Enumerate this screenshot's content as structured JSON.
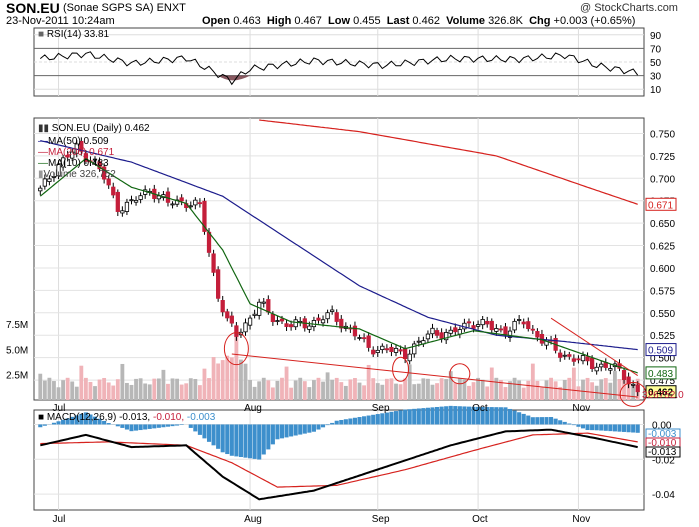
{
  "header": {
    "symbol": "SON.EU",
    "company": "(Sonae SGPS SA)",
    "exchange": "ENXT",
    "date": "23-Nov-2011 10:24am",
    "open_label": "Open",
    "open": "0.463",
    "high_label": "High",
    "high": "0.467",
    "low_label": "Low",
    "low": "0.455",
    "last_label": "Last",
    "last": "0.462",
    "volume_label": "Volume",
    "volume": "326.8K",
    "chg_label": "Chg",
    "chg": "+0.003 (+0.65%)",
    "copyright": "@ StockCharts.com"
  },
  "rsi": {
    "label": "RSI(14) 33.81",
    "ticks": [
      "90",
      "70",
      "50",
      "30",
      "10"
    ],
    "last": "33.81"
  },
  "price_legend": {
    "title": "SON.EU (Daily) 0.462",
    "ma50": "MA(50) 0.509",
    "ma200": "MA(200) 0.671",
    "ma10": "MA(10) 0.483",
    "volume": "Volume 326,752"
  },
  "price_axis": {
    "ticks": [
      "0.750",
      "0.725",
      "0.700",
      "0.675",
      "0.650",
      "0.625",
      "0.600",
      "0.575",
      "0.550",
      "0.525",
      "0.500",
      "0.475"
    ],
    "tags": {
      "ma200": "0.671",
      "ma50": "0.509",
      "ma10": "0.483",
      "last": "0.462",
      "vol": "326752.0"
    }
  },
  "volume_axis": {
    "ticks": [
      "7.5M",
      "5.0M",
      "2.5M"
    ]
  },
  "macd": {
    "label_base": "MACD(12,26,9)",
    "v1": "-0.013,",
    "v2": "-0.010,",
    "v3": "-0.003",
    "ticks": [
      "0.00",
      "-0.02",
      "-0.04"
    ],
    "tags": [
      "-0.003",
      "-0.010",
      "-0.013"
    ]
  },
  "months": [
    "Jul",
    "Aug",
    "Sep",
    "Oct",
    "Nov"
  ],
  "colors": {
    "up": "#ffffff",
    "down": "#c41e3a",
    "vol_up": "#b7b7b7",
    "vol_down": "#f0b3b8",
    "ma50": "#1c1c8c",
    "ma200": "#d6221e",
    "ma10": "#116611",
    "rsi_fill": "#6b2f3a",
    "hist": "#3d8fcc"
  },
  "chart_data": {
    "type": "candlestick",
    "x_months": [
      "Jul",
      "Aug",
      "Sep",
      "Oct",
      "Nov"
    ],
    "price_ylim": [
      0.455,
      0.765
    ],
    "close_waypoints": [
      {
        "d": 0,
        "c": 0.686
      },
      {
        "d": 4,
        "c": 0.716
      },
      {
        "d": 8,
        "c": 0.733
      },
      {
        "d": 12,
        "c": 0.718
      },
      {
        "d": 14,
        "c": 0.7
      },
      {
        "d": 17,
        "c": 0.668
      },
      {
        "d": 20,
        "c": 0.672
      },
      {
        "d": 24,
        "c": 0.688
      },
      {
        "d": 28,
        "c": 0.672
      },
      {
        "d": 31,
        "c": 0.675
      },
      {
        "d": 35,
        "c": 0.668
      },
      {
        "d": 37,
        "c": 0.618
      },
      {
        "d": 39,
        "c": 0.57
      },
      {
        "d": 41,
        "c": 0.54
      },
      {
        "d": 43,
        "c": 0.525
      },
      {
        "d": 45,
        "c": 0.538
      },
      {
        "d": 48,
        "c": 0.56
      },
      {
        "d": 51,
        "c": 0.545
      },
      {
        "d": 55,
        "c": 0.535
      },
      {
        "d": 60,
        "c": 0.54
      },
      {
        "d": 64,
        "c": 0.548
      },
      {
        "d": 68,
        "c": 0.53
      },
      {
        "d": 72,
        "c": 0.512
      },
      {
        "d": 76,
        "c": 0.508
      },
      {
        "d": 80,
        "c": 0.505
      },
      {
        "d": 83,
        "c": 0.515
      },
      {
        "d": 86,
        "c": 0.53
      },
      {
        "d": 90,
        "c": 0.525
      },
      {
        "d": 94,
        "c": 0.54
      },
      {
        "d": 98,
        "c": 0.535
      },
      {
        "d": 102,
        "c": 0.53
      },
      {
        "d": 106,
        "c": 0.54
      },
      {
        "d": 110,
        "c": 0.52
      },
      {
        "d": 114,
        "c": 0.505
      },
      {
        "d": 118,
        "c": 0.497
      },
      {
        "d": 122,
        "c": 0.492
      },
      {
        "d": 126,
        "c": 0.488
      },
      {
        "d": 129,
        "c": 0.476
      },
      {
        "d": 131,
        "c": 0.462
      }
    ],
    "ma50": [
      {
        "d": 0,
        "v": 0.742
      },
      {
        "d": 20,
        "v": 0.718
      },
      {
        "d": 40,
        "v": 0.68
      },
      {
        "d": 55,
        "v": 0.63
      },
      {
        "d": 70,
        "v": 0.58
      },
      {
        "d": 85,
        "v": 0.545
      },
      {
        "d": 100,
        "v": 0.525
      },
      {
        "d": 115,
        "v": 0.518
      },
      {
        "d": 131,
        "v": 0.509
      }
    ],
    "ma200": [
      {
        "d": 48,
        "v": 0.765
      },
      {
        "d": 70,
        "v": 0.752
      },
      {
        "d": 100,
        "v": 0.725
      },
      {
        "d": 120,
        "v": 0.69
      },
      {
        "d": 131,
        "v": 0.671
      }
    ],
    "ma10": [
      {
        "d": 0,
        "v": 0.68
      },
      {
        "d": 10,
        "v": 0.722
      },
      {
        "d": 20,
        "v": 0.69
      },
      {
        "d": 32,
        "v": 0.672
      },
      {
        "d": 40,
        "v": 0.62
      },
      {
        "d": 46,
        "v": 0.56
      },
      {
        "d": 55,
        "v": 0.54
      },
      {
        "d": 70,
        "v": 0.532
      },
      {
        "d": 80,
        "v": 0.51
      },
      {
        "d": 95,
        "v": 0.53
      },
      {
        "d": 110,
        "v": 0.52
      },
      {
        "d": 125,
        "v": 0.493
      },
      {
        "d": 131,
        "v": 0.483
      }
    ],
    "rsi": [
      {
        "d": 0,
        "v": 55
      },
      {
        "d": 10,
        "v": 62
      },
      {
        "d": 20,
        "v": 48
      },
      {
        "d": 32,
        "v": 56
      },
      {
        "d": 42,
        "v": 22
      },
      {
        "d": 46,
        "v": 40
      },
      {
        "d": 60,
        "v": 52
      },
      {
        "d": 75,
        "v": 45
      },
      {
        "d": 90,
        "v": 55
      },
      {
        "d": 105,
        "v": 54
      },
      {
        "d": 115,
        "v": 60
      },
      {
        "d": 122,
        "v": 45
      },
      {
        "d": 131,
        "v": 33.81
      }
    ],
    "macd_line": [
      {
        "d": 0,
        "v": -0.012
      },
      {
        "d": 10,
        "v": -0.006
      },
      {
        "d": 20,
        "v": -0.013
      },
      {
        "d": 32,
        "v": -0.012
      },
      {
        "d": 40,
        "v": -0.03
      },
      {
        "d": 48,
        "v": -0.043
      },
      {
        "d": 60,
        "v": -0.038
      },
      {
        "d": 75,
        "v": -0.025
      },
      {
        "d": 90,
        "v": -0.012
      },
      {
        "d": 102,
        "v": -0.004
      },
      {
        "d": 112,
        "v": -0.003
      },
      {
        "d": 122,
        "v": -0.008
      },
      {
        "d": 131,
        "v": -0.013
      }
    ],
    "macd_signal": [
      {
        "d": 0,
        "v": -0.011
      },
      {
        "d": 15,
        "v": -0.01
      },
      {
        "d": 32,
        "v": -0.012
      },
      {
        "d": 42,
        "v": -0.022
      },
      {
        "d": 52,
        "v": -0.036
      },
      {
        "d": 65,
        "v": -0.035
      },
      {
        "d": 80,
        "v": -0.026
      },
      {
        "d": 95,
        "v": -0.015
      },
      {
        "d": 108,
        "v": -0.006
      },
      {
        "d": 120,
        "v": -0.005
      },
      {
        "d": 131,
        "v": -0.01
      }
    ],
    "volume_ylim_M": [
      0,
      9.5
    ]
  }
}
